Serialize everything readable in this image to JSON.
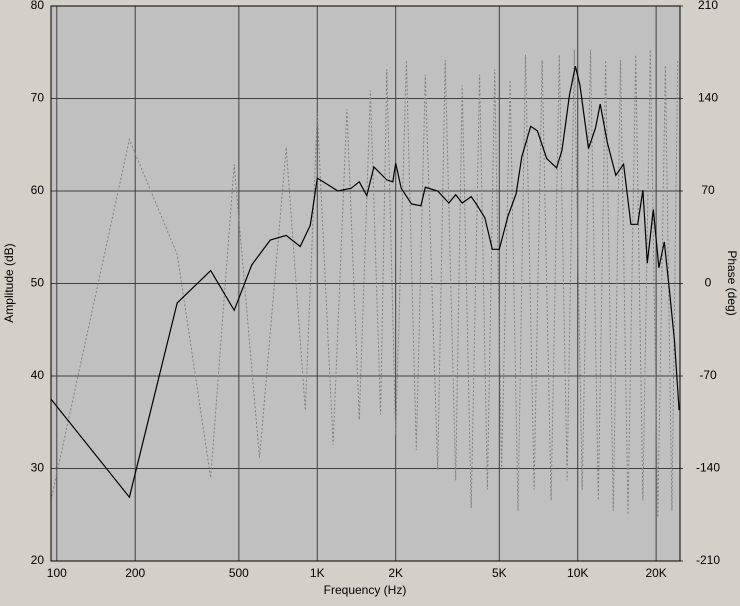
{
  "chart_data": {
    "type": "line",
    "xlabel": "Frequency (Hz)",
    "ylabel": "Amplitude (dB)",
    "y2label": "Phase (deg)",
    "xscale": "log",
    "grid": true,
    "xlim": [
      95,
      24700
    ],
    "xticks": [
      100,
      200,
      500,
      {
        "value": 1000,
        "label": "1K"
      },
      {
        "value": 2000,
        "label": "2K"
      },
      {
        "value": 5000,
        "label": "5K"
      },
      {
        "value": 10000,
        "label": "10K"
      },
      {
        "value": 20000,
        "label": "20K"
      }
    ],
    "ylim": [
      20,
      80
    ],
    "yticks": [
      20,
      30,
      40,
      50,
      60,
      70,
      80
    ],
    "y2lim": [
      -210,
      210
    ],
    "y2ticks": [
      -210,
      -140,
      -70,
      0,
      70,
      140,
      210
    ],
    "series": [
      {
        "name": "Amplitude",
        "color": "#000000",
        "line_style": "solid",
        "x": [
          95,
          190,
          290,
          390,
          480,
          560,
          660,
          760,
          860,
          940,
          1000,
          1200,
          1350,
          1450,
          1550,
          1650,
          1850,
          1950,
          2000,
          2100,
          2300,
          2500,
          2600,
          2900,
          3200,
          3400,
          3600,
          3900,
          4100,
          4400,
          4700,
          5000,
          5400,
          5800,
          6100,
          6600,
          7000,
          7600,
          8300,
          8700,
          9300,
          9800,
          10200,
          11000,
          11700,
          12200,
          13000,
          14000,
          15000,
          16000,
          17000,
          17800,
          18500,
          19500,
          20500,
          21500,
          22500,
          23500,
          24500
        ],
        "values": [
          37.5,
          26.9,
          47.9,
          51.4,
          47.1,
          52,
          54.7,
          55.2,
          54,
          56.3,
          61.4,
          60,
          60.3,
          61,
          59.5,
          62.6,
          61.2,
          61,
          63,
          60.3,
          58.6,
          58.4,
          60.4,
          60,
          58.7,
          59.6,
          58.7,
          59.4,
          58.5,
          57.1,
          53.7,
          53.7,
          57.3,
          59.7,
          63.7,
          67,
          66.5,
          63.5,
          62.5,
          64.4,
          70.4,
          73.5,
          71.4,
          64.6,
          66.8,
          69.4,
          65.2,
          61.7,
          62.9,
          56.4,
          56.4,
          60.1,
          52.2,
          58,
          51.7,
          54.5,
          49.3,
          43.9,
          36.3
        ]
      },
      {
        "name": "Phase",
        "color": "#808080",
        "line_style": "dotted",
        "axis": "y2",
        "x": [
          95,
          190,
          290,
          390,
          480,
          600,
          760,
          900,
          1000,
          1150,
          1300,
          1450,
          1600,
          1750,
          1850,
          2000,
          2200,
          2400,
          2600,
          2900,
          3100,
          3400,
          3600,
          3900,
          4200,
          4500,
          4800,
          5100,
          5500,
          5900,
          6300,
          6800,
          7300,
          7900,
          8500,
          9100,
          9700,
          10400,
          11200,
          12000,
          12800,
          13700,
          14600,
          15600,
          16700,
          17800,
          19000,
          20300,
          21700,
          23000,
          24200
        ],
        "values": [
          -164,
          109,
          22,
          -147,
          90,
          -132,
          103,
          -96,
          129,
          -122,
          132,
          -103,
          146,
          -99,
          162,
          -115,
          169,
          -126,
          158,
          -141,
          169,
          -149,
          150,
          -170,
          158,
          -156,
          162,
          -141,
          154,
          -172,
          173,
          -156,
          169,
          -164,
          173,
          -149,
          177,
          -156,
          177,
          -164,
          169,
          -172,
          169,
          -175,
          173,
          -164,
          177,
          -177,
          165,
          -172,
          169
        ]
      }
    ]
  }
}
